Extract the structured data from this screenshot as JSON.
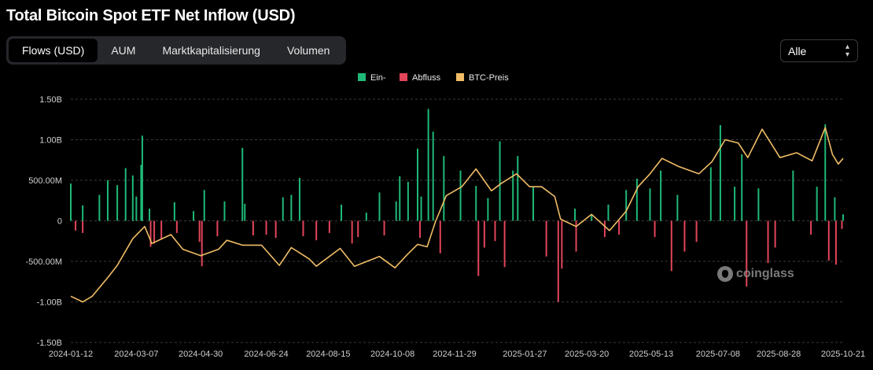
{
  "header": {
    "title": "Total Bitcoin Spot ETF Net Inflow (USD)"
  },
  "tabs": [
    {
      "label": "Flows (USD)",
      "active": true
    },
    {
      "label": "AUM",
      "active": false
    },
    {
      "label": "Marktkapitalisierung",
      "active": false
    },
    {
      "label": "Volumen",
      "active": false
    }
  ],
  "range_select": {
    "value": "Alle"
  },
  "watermark": {
    "text": "coinglass"
  },
  "colors": {
    "inflow": "#1fb978",
    "outflow": "#e2455a",
    "price": "#f0bd66",
    "grid": "#3a3a3a",
    "axis_text": "#cfcfcf"
  },
  "chart_data": {
    "type": "bar",
    "title": "Total Bitcoin Spot ETF Net Inflow (USD)",
    "legend": [
      "Ein-",
      "Abfluss",
      "BTC-Preis"
    ],
    "legend_position": "top-center",
    "grid": true,
    "y_ticks": [
      "1.50B",
      "1.00B",
      "500.00M",
      "0",
      "-500.00M",
      "-1.00B",
      "-1.50B"
    ],
    "ylim": [
      -1500,
      1500
    ],
    "y_unit": "millions USD",
    "x_ticks": [
      "2024-01-12",
      "2024-03-07",
      "2024-04-30",
      "2024-06-24",
      "2024-08-15",
      "2024-10-08",
      "2024-11-29",
      "2025-01-27",
      "2025-03-20",
      "2025-05-13",
      "2025-07-08",
      "2025-08-28",
      "2025-10-21"
    ],
    "flow_series": [
      {
        "name": "Ein-",
        "points": [
          [
            "2024-01-12",
            460
          ],
          [
            "2024-01-22",
            190
          ],
          [
            "2024-02-05",
            320
          ],
          [
            "2024-02-12",
            500
          ],
          [
            "2024-02-20",
            440
          ],
          [
            "2024-02-27",
            650
          ],
          [
            "2024-03-04",
            560
          ],
          [
            "2024-03-07",
            300
          ],
          [
            "2024-03-11",
            690
          ],
          [
            "2024-03-12",
            1050
          ],
          [
            "2024-03-18",
            150
          ],
          [
            "2024-04-08",
            230
          ],
          [
            "2024-04-24",
            120
          ],
          [
            "2024-05-03",
            380
          ],
          [
            "2024-05-20",
            240
          ],
          [
            "2024-06-04",
            900
          ],
          [
            "2024-06-06",
            210
          ],
          [
            "2024-07-08",
            290
          ],
          [
            "2024-07-15",
            320
          ],
          [
            "2024-07-22",
            530
          ],
          [
            "2024-08-26",
            200
          ],
          [
            "2024-09-16",
            100
          ],
          [
            "2024-09-27",
            350
          ],
          [
            "2024-10-11",
            240
          ],
          [
            "2024-10-14",
            550
          ],
          [
            "2024-10-21",
            480
          ],
          [
            "2024-10-29",
            890
          ],
          [
            "2024-11-01",
            300
          ],
          [
            "2024-11-07",
            1380
          ],
          [
            "2024-11-11",
            1100
          ],
          [
            "2024-11-20",
            800
          ],
          [
            "2024-12-04",
            620
          ],
          [
            "2024-12-17",
            430
          ],
          [
            "2024-12-27",
            280
          ],
          [
            "2025-01-06",
            980
          ],
          [
            "2025-01-17",
            620
          ],
          [
            "2025-01-21",
            800
          ],
          [
            "2025-02-03",
            420
          ],
          [
            "2025-03-10",
            150
          ],
          [
            "2025-03-24",
            80
          ],
          [
            "2025-04-07",
            200
          ],
          [
            "2025-04-22",
            380
          ],
          [
            "2025-05-01",
            520
          ],
          [
            "2025-05-12",
            400
          ],
          [
            "2025-05-21",
            620
          ],
          [
            "2025-06-04",
            320
          ],
          [
            "2025-07-02",
            660
          ],
          [
            "2025-07-10",
            1180
          ],
          [
            "2025-07-22",
            420
          ],
          [
            "2025-07-28",
            820
          ],
          [
            "2025-08-11",
            400
          ],
          [
            "2025-09-09",
            620
          ],
          [
            "2025-09-29",
            420
          ],
          [
            "2025-10-06",
            1190
          ],
          [
            "2025-10-14",
            290
          ],
          [
            "2025-10-21",
            80
          ]
        ]
      },
      {
        "name": "Abfluss",
        "points": [
          [
            "2024-01-16",
            -120
          ],
          [
            "2024-01-22",
            -150
          ],
          [
            "2024-03-19",
            -320
          ],
          [
            "2024-03-22",
            -280
          ],
          [
            "2024-03-28",
            -230
          ],
          [
            "2024-04-10",
            -150
          ],
          [
            "2024-04-29",
            -260
          ],
          [
            "2024-05-01",
            -560
          ],
          [
            "2024-05-14",
            -190
          ],
          [
            "2024-06-13",
            -180
          ],
          [
            "2024-06-24",
            -170
          ],
          [
            "2024-07-02",
            -210
          ],
          [
            "2024-07-25",
            -190
          ],
          [
            "2024-08-05",
            -240
          ],
          [
            "2024-08-16",
            -150
          ],
          [
            "2024-09-04",
            -280
          ],
          [
            "2024-09-09",
            -200
          ],
          [
            "2024-10-01",
            -180
          ],
          [
            "2024-10-31",
            -210
          ],
          [
            "2024-11-17",
            -400
          ],
          [
            "2024-12-19",
            -680
          ],
          [
            "2024-12-24",
            -330
          ],
          [
            "2025-01-02",
            -250
          ],
          [
            "2025-01-10",
            -570
          ],
          [
            "2025-02-14",
            -440
          ],
          [
            "2025-02-24",
            -1000
          ],
          [
            "2025-02-27",
            -590
          ],
          [
            "2025-03-11",
            -380
          ],
          [
            "2025-04-04",
            -200
          ],
          [
            "2025-04-16",
            -170
          ],
          [
            "2025-05-16",
            -200
          ],
          [
            "2025-05-30",
            -620
          ],
          [
            "2025-06-10",
            -380
          ],
          [
            "2025-06-20",
            -260
          ],
          [
            "2025-08-01",
            -810
          ],
          [
            "2025-08-19",
            -520
          ],
          [
            "2025-08-25",
            -330
          ],
          [
            "2025-09-24",
            -170
          ],
          [
            "2025-10-09",
            -490
          ],
          [
            "2025-10-15",
            -540
          ],
          [
            "2025-10-20",
            -100
          ]
        ]
      }
    ],
    "price_series": {
      "name": "BTC-Preis",
      "points": [
        [
          "2024-01-12",
          -930
        ],
        [
          "2024-01-22",
          -1000
        ],
        [
          "2024-01-30",
          -930
        ],
        [
          "2024-02-12",
          -700
        ],
        [
          "2024-02-20",
          -550
        ],
        [
          "2024-03-04",
          -220
        ],
        [
          "2024-03-14",
          -70
        ],
        [
          "2024-03-20",
          -280
        ],
        [
          "2024-04-05",
          -170
        ],
        [
          "2024-04-15",
          -350
        ],
        [
          "2024-04-30",
          -430
        ],
        [
          "2024-05-15",
          -350
        ],
        [
          "2024-05-22",
          -240
        ],
        [
          "2024-06-04",
          -300
        ],
        [
          "2024-06-20",
          -300
        ],
        [
          "2024-07-05",
          -550
        ],
        [
          "2024-07-15",
          -330
        ],
        [
          "2024-07-30",
          -470
        ],
        [
          "2024-08-05",
          -560
        ],
        [
          "2024-08-25",
          -340
        ],
        [
          "2024-09-06",
          -560
        ],
        [
          "2024-09-27",
          -440
        ],
        [
          "2024-10-10",
          -580
        ],
        [
          "2024-10-20",
          -420
        ],
        [
          "2024-10-29",
          -290
        ],
        [
          "2024-11-06",
          -320
        ],
        [
          "2024-11-13",
          -10
        ],
        [
          "2024-11-22",
          310
        ],
        [
          "2024-12-05",
          420
        ],
        [
          "2024-12-17",
          640
        ],
        [
          "2024-12-30",
          370
        ],
        [
          "2025-01-07",
          460
        ],
        [
          "2025-01-20",
          580
        ],
        [
          "2025-01-31",
          420
        ],
        [
          "2025-02-10",
          420
        ],
        [
          "2025-02-21",
          300
        ],
        [
          "2025-02-26",
          20
        ],
        [
          "2025-03-11",
          -70
        ],
        [
          "2025-03-24",
          80
        ],
        [
          "2025-04-08",
          -120
        ],
        [
          "2025-04-22",
          120
        ],
        [
          "2025-05-02",
          420
        ],
        [
          "2025-05-12",
          580
        ],
        [
          "2025-05-22",
          770
        ],
        [
          "2025-06-05",
          670
        ],
        [
          "2025-06-22",
          580
        ],
        [
          "2025-07-03",
          730
        ],
        [
          "2025-07-14",
          1000
        ],
        [
          "2025-07-25",
          960
        ],
        [
          "2025-08-02",
          780
        ],
        [
          "2025-08-14",
          1130
        ],
        [
          "2025-08-29",
          780
        ],
        [
          "2025-09-12",
          840
        ],
        [
          "2025-09-25",
          740
        ],
        [
          "2025-10-06",
          1150
        ],
        [
          "2025-10-12",
          820
        ],
        [
          "2025-10-17",
          700
        ],
        [
          "2025-10-21",
          770
        ]
      ]
    }
  }
}
